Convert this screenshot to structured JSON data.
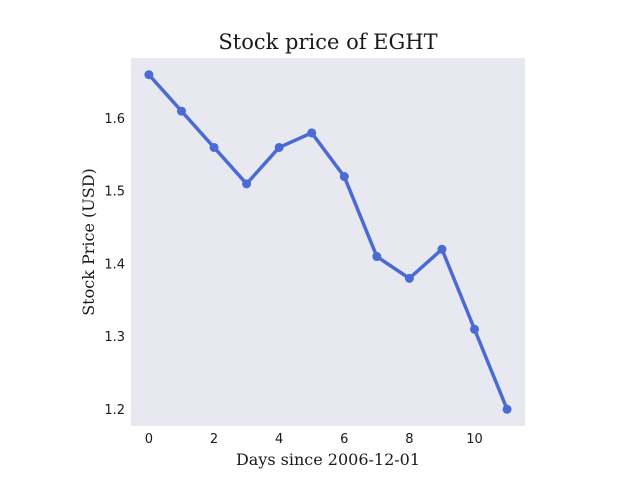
{
  "chart_data": {
    "type": "line",
    "title": "Stock price of EGHT",
    "xlabel": "Days since 2006-12-01",
    "ylabel": "Stock Price (USD)",
    "x": [
      0,
      1,
      2,
      3,
      4,
      5,
      6,
      7,
      8,
      9,
      10,
      11
    ],
    "series": [
      {
        "values": [
          1.66,
          1.61,
          1.56,
          1.51,
          1.56,
          1.58,
          1.52,
          1.41,
          1.38,
          1.42,
          1.31,
          1.2
        ]
      }
    ],
    "xticks": [
      0,
      2,
      4,
      6,
      8,
      10
    ],
    "yticks": [
      1.2,
      1.3,
      1.4,
      1.5,
      1.6
    ],
    "xtick_labels": [
      "0",
      "2",
      "4",
      "6",
      "8",
      "10"
    ],
    "ytick_labels": [
      "1.2",
      "1.3",
      "1.4",
      "1.5",
      "1.6"
    ],
    "xlim": [
      -0.55,
      11.55
    ],
    "ylim": [
      1.177,
      1.683
    ],
    "grid": false,
    "colors": {
      "line": "#4a6bd4",
      "plot_background": "#e8e8f1"
    }
  }
}
